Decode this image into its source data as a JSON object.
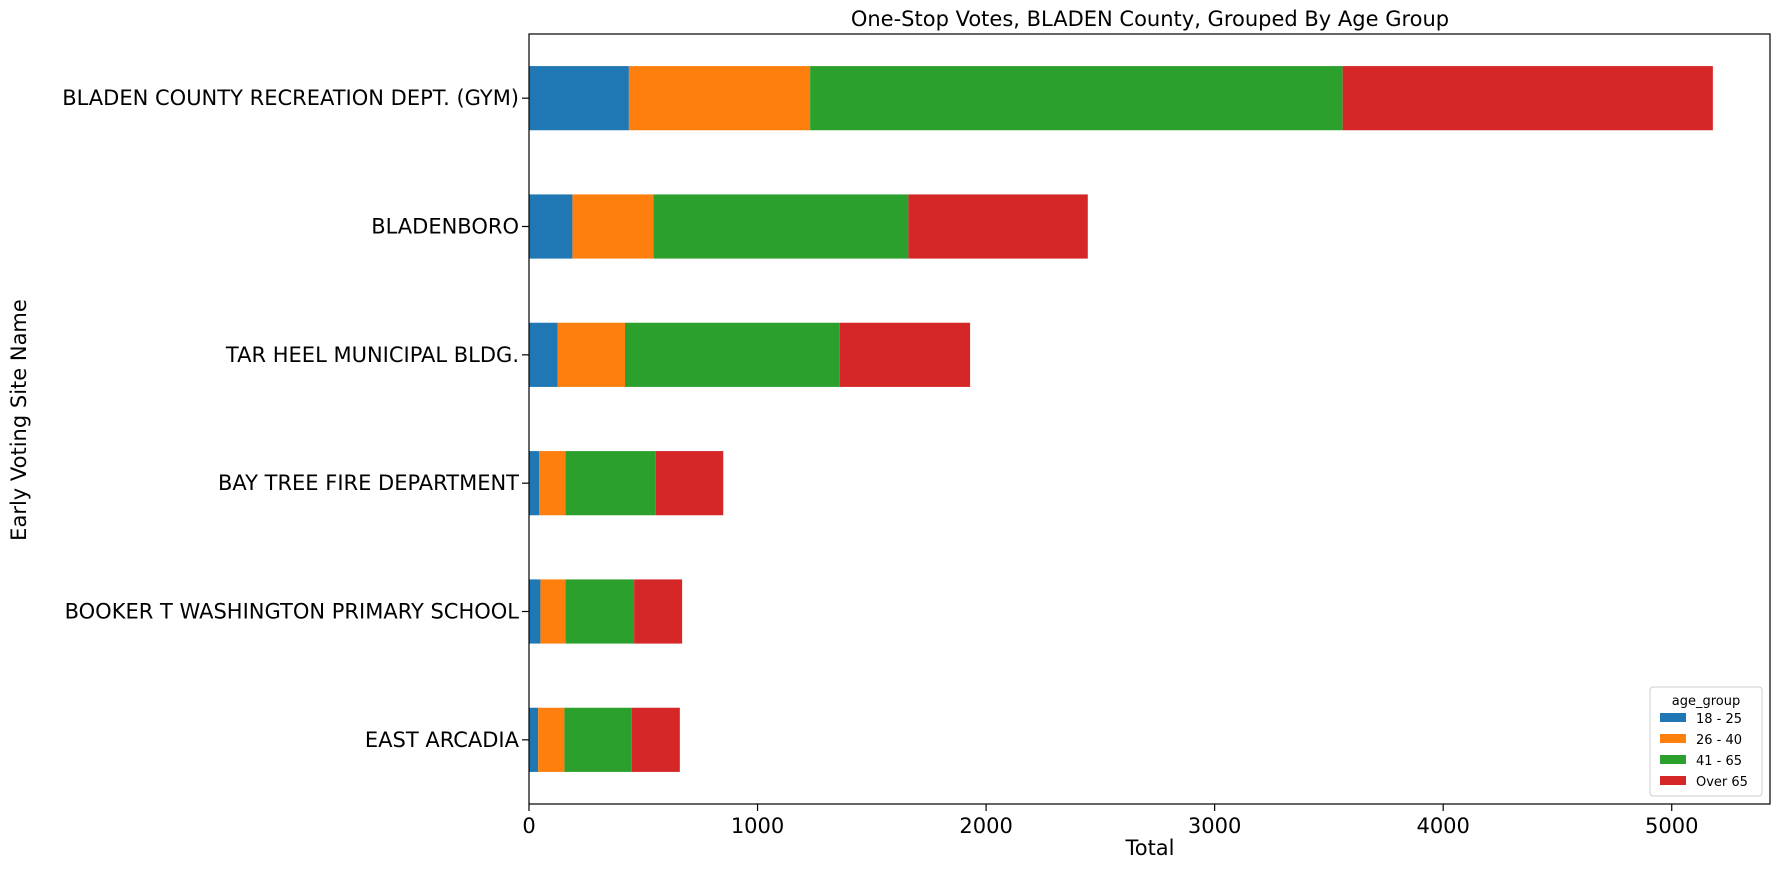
{
  "chart_data": {
    "type": "bar",
    "orientation": "horizontal",
    "stacked": true,
    "title": "One-Stop Votes, BLADEN County, Grouped By Age Group",
    "xlabel": "Total",
    "ylabel": "Early Voting Site Name",
    "xlim": [
      0,
      5430
    ],
    "xticks": [
      0,
      1000,
      2000,
      3000,
      4000,
      5000
    ],
    "categories": [
      "BLADEN COUNTY RECREATION DEPT. (GYM)",
      "BLADENBORO",
      "TAR HEEL MUNICIPAL BLDG.",
      "BAY TREE FIRE DEPARTMENT",
      "BOOKER T WASHINGTON PRIMARY SCHOOL",
      "EAST ARCADIA"
    ],
    "series": [
      {
        "name": "18 - 25",
        "color": "#1f77b4",
        "values": [
          437,
          190,
          125,
          45,
          50,
          40
        ]
      },
      {
        "name": "26 - 40",
        "color": "#ff7f0e",
        "values": [
          793,
          355,
          295,
          115,
          110,
          115
        ]
      },
      {
        "name": "41 - 65",
        "color": "#2ca02c",
        "values": [
          2330,
          1115,
          940,
          395,
          300,
          295
        ]
      },
      {
        "name": "Over 65",
        "color": "#d62728",
        "values": [
          1620,
          785,
          570,
          295,
          210,
          210
        ]
      }
    ],
    "legend": {
      "title": "age_group",
      "placement": "lower-right"
    },
    "grid": false
  }
}
